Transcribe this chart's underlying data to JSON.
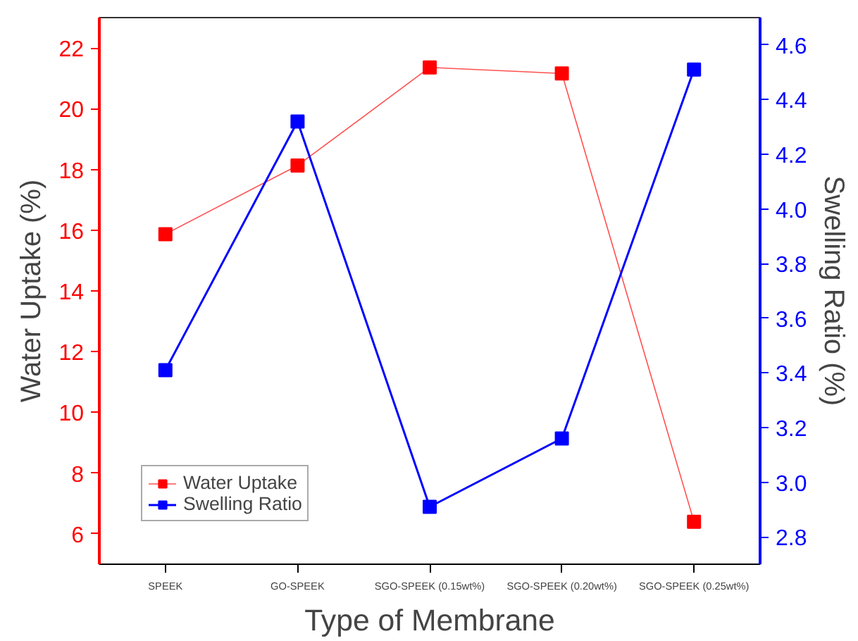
{
  "chart_data": {
    "type": "line",
    "xlabel": "Type of Membrane",
    "ylabel": "Water Uptake (%)",
    "y2label": "Swelling Ratio (%)",
    "categories": [
      "SPEEK",
      "GO-SPEEK",
      "SGO-SPEEK (0.15wt%)",
      "SGO-SPEEK (0.20wt%)",
      "SGO-SPEEK (0.25wt%)"
    ],
    "series": [
      {
        "name": "Water Uptake",
        "color": "#ff0000",
        "values": [
          15.87,
          18.13,
          21.36,
          21.16,
          6.4
        ]
      },
      {
        "name": "Swelling Ratio",
        "color": "#0000ff",
        "axis": "y2",
        "values": [
          3.41,
          4.32,
          2.91,
          3.16,
          4.51
        ]
      }
    ],
    "ylim": [
      5,
      23
    ],
    "yticks": [
      6,
      8,
      10,
      12,
      14,
      16,
      18,
      20,
      22
    ],
    "y2lim": [
      2.7,
      4.7
    ],
    "y2ticks": [
      {
        "value": 2.8,
        "label": "2.8"
      },
      {
        "value": 3.0,
        "label": "3.0"
      },
      {
        "value": 3.2,
        "label": "3.2"
      },
      {
        "value": 3.4,
        "label": "3.4"
      },
      {
        "value": 3.6,
        "label": "3.6"
      },
      {
        "value": 3.8,
        "label": "3.8"
      },
      {
        "value": 4.0,
        "label": "4.0"
      },
      {
        "value": 4.2,
        "label": "4.2"
      },
      {
        "value": 4.4,
        "label": "4.4"
      },
      {
        "value": 4.6,
        "label": "4.6"
      }
    ],
    "grid": false,
    "legend": "bottom left",
    "marker": "square",
    "line_style": "solid"
  }
}
